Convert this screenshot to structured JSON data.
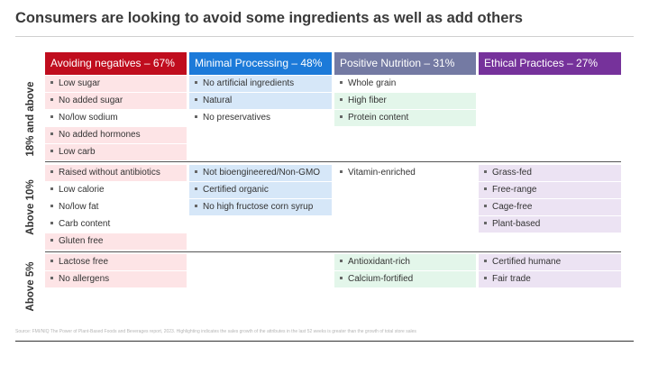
{
  "title": "Consumers are looking to avoid some ingredients as well as add others",
  "columns": [
    {
      "label": "Avoiding negatives – 67%",
      "color": "#c00d1e"
    },
    {
      "label": "Minimal Processing – 48%",
      "color": "#1c7ad9"
    },
    {
      "label": "Positive Nutrition – 31%",
      "color": "#747aa3"
    },
    {
      "label": "Ethical Practices – 27%",
      "color": "#76329b"
    }
  ],
  "rows": [
    {
      "label": "18% and above",
      "avoiding": [
        "Low sugar",
        "No added sugar",
        "No/low sodium",
        "No added hormones",
        "Low carb"
      ],
      "minimal": [
        "No artificial ingredients",
        "Natural",
        "No preservatives"
      ],
      "positive": [
        "Whole grain",
        "High fiber",
        "Protein content"
      ],
      "ethical": []
    },
    {
      "label": "Above 10%",
      "avoiding": [
        "Raised without antibiotics",
        "Low calorie",
        "No/low fat",
        "Carb content",
        "Gluten free"
      ],
      "minimal": [
        "Not bioengineered/Non-GMO",
        "Certified organic",
        "No high fructose corn syrup"
      ],
      "positive": [
        "Vitamin-enriched"
      ],
      "ethical": [
        "Grass-fed",
        "Free-range",
        "Cage-free",
        "Plant-based"
      ]
    },
    {
      "label": "Above 5%",
      "avoiding": [
        "Lactose free",
        "No allergens"
      ],
      "minimal": [],
      "positive": [
        "Antioxidant-rich",
        "Calcium-fortified"
      ],
      "ethical": [
        "Certified humane",
        "Fair trade"
      ]
    }
  ],
  "source": "Source: FMI/NIQ The Power of Plant-Based Foods and Beverages report, 2023. Highlighting indicates the sales growth of the attributes in the last 52 weeks is greater than the growth of total store sales"
}
